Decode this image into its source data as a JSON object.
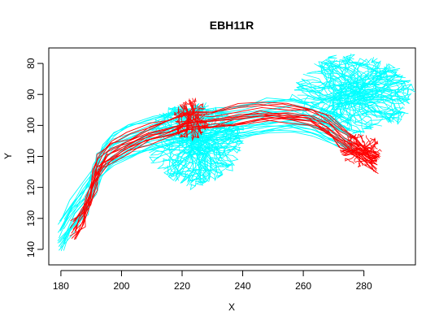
{
  "chart_data": {
    "type": "line",
    "title": "EBH11R",
    "xlabel": "X",
    "ylabel": "Y",
    "xlim": [
      176,
      297
    ],
    "ylim": [
      145,
      75
    ],
    "y_axis_reversed": true,
    "grid": false,
    "legend": "none",
    "x_ticks": [
      180,
      200,
      220,
      240,
      260,
      280
    ],
    "y_ticks": [
      80,
      90,
      100,
      110,
      120,
      130,
      140
    ],
    "colors": {
      "series_a": "#00ffff",
      "series_b": "#ff0000",
      "axis": "#000000"
    },
    "series": [
      {
        "color": "#00ffff",
        "description": "neuron skeleton traces",
        "bundle": [
          [
            180,
            136
          ],
          [
            184,
            129
          ],
          [
            188,
            124
          ],
          [
            191,
            118
          ],
          [
            193,
            112
          ],
          [
            197,
            108
          ],
          [
            203,
            105
          ],
          [
            210,
            103
          ],
          [
            218,
            101
          ],
          [
            225,
            100
          ],
          [
            232,
            100
          ],
          [
            240,
            99
          ],
          [
            248,
            97
          ],
          [
            256,
            97
          ],
          [
            263,
            98
          ],
          [
            270,
            101
          ],
          [
            276,
            104
          ]
        ],
        "clusters": [
          {
            "cx": 224,
            "cy": 106,
            "rx": 14,
            "ry": 12
          },
          {
            "cx": 276,
            "cy": 90,
            "rx": 18,
            "ry": 11
          }
        ]
      },
      {
        "color": "#ff0000",
        "description": "neuron skeleton traces",
        "bundle": [
          [
            184,
            134
          ],
          [
            187,
            130
          ],
          [
            189,
            125
          ],
          [
            191,
            118
          ],
          [
            193,
            112
          ],
          [
            196,
            109
          ],
          [
            202,
            106
          ],
          [
            209,
            103
          ],
          [
            216,
            101
          ],
          [
            222,
            99
          ],
          [
            230,
            98
          ],
          [
            238,
            97
          ],
          [
            246,
            96
          ],
          [
            254,
            96
          ],
          [
            262,
            97
          ],
          [
            268,
            100
          ],
          [
            273,
            104
          ],
          [
            277,
            107
          ],
          [
            281,
            110
          ],
          [
            284,
            113
          ]
        ],
        "clusters": [
          {
            "cx": 223,
            "cy": 98,
            "rx": 5,
            "ry": 6
          },
          {
            "cx": 279,
            "cy": 108,
            "rx": 6,
            "ry": 5
          }
        ]
      }
    ]
  }
}
